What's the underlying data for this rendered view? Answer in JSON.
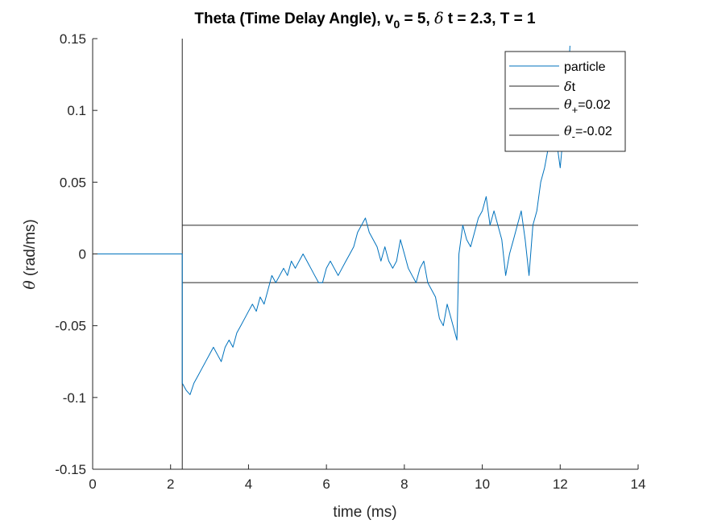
{
  "chart_data": {
    "type": "line",
    "title": {
      "prefix": "Theta (Time Delay Angle), v",
      "sub": "0",
      "middle": " = 5, ",
      "greek": "δ",
      "suffix": " t = 2.3, T = 1"
    },
    "xlabel": "time (ms)",
    "ylabel": {
      "greek": "θ",
      "text": " (rad/ms)"
    },
    "xlim": [
      0,
      14
    ],
    "ylim": [
      -0.15,
      0.15
    ],
    "xticks": [
      0,
      2,
      4,
      6,
      8,
      10,
      12,
      14
    ],
    "xtick_labels": [
      "0",
      "2",
      "4",
      "6",
      "8",
      "10",
      "12",
      "14"
    ],
    "yticks": [
      -0.15,
      -0.1,
      -0.05,
      0,
      0.05,
      0.1,
      0.15
    ],
    "ytick_labels": [
      "-0.15",
      "-0.1",
      "-0.05",
      "0",
      "0.05",
      "0.1",
      "0.15"
    ],
    "legend_position": "top-right",
    "colors": {
      "particle": "#0072BD",
      "reference": "#262626"
    },
    "series": [
      {
        "name": "particle",
        "color": "#0072BD",
        "x": [
          0,
          2.3,
          2.3,
          2.4,
          2.5,
          2.6,
          2.7,
          2.8,
          2.9,
          3.0,
          3.1,
          3.2,
          3.3,
          3.4,
          3.5,
          3.6,
          3.7,
          3.8,
          3.9,
          4.0,
          4.1,
          4.2,
          4.3,
          4.4,
          4.5,
          4.6,
          4.7,
          4.8,
          4.9,
          5.0,
          5.1,
          5.2,
          5.3,
          5.4,
          5.5,
          5.6,
          5.7,
          5.8,
          5.9,
          6.0,
          6.1,
          6.2,
          6.3,
          6.4,
          6.5,
          6.6,
          6.7,
          6.8,
          6.9,
          7.0,
          7.1,
          7.2,
          7.3,
          7.4,
          7.5,
          7.6,
          7.7,
          7.8,
          7.9,
          8.0,
          8.1,
          8.2,
          8.3,
          8.4,
          8.5,
          8.6,
          8.7,
          8.8,
          8.9,
          9.0,
          9.1,
          9.2,
          9.3,
          9.35,
          9.4,
          9.5,
          9.6,
          9.7,
          9.8,
          9.9,
          10.0,
          10.1,
          10.2,
          10.3,
          10.4,
          10.5,
          10.6,
          10.7,
          10.8,
          10.9,
          11.0,
          11.1,
          11.2,
          11.3,
          11.4,
          11.5,
          11.6,
          11.7,
          11.8,
          11.9,
          12.0,
          12.1,
          12.2,
          12.25
        ],
        "y": [
          0,
          0,
          -0.09,
          -0.095,
          -0.098,
          -0.09,
          -0.085,
          -0.08,
          -0.075,
          -0.07,
          -0.065,
          -0.07,
          -0.075,
          -0.065,
          -0.06,
          -0.065,
          -0.055,
          -0.05,
          -0.045,
          -0.04,
          -0.035,
          -0.04,
          -0.03,
          -0.035,
          -0.025,
          -0.015,
          -0.02,
          -0.015,
          -0.01,
          -0.015,
          -0.005,
          -0.01,
          -0.005,
          0.0,
          -0.005,
          -0.01,
          -0.015,
          -0.02,
          -0.02,
          -0.01,
          -0.005,
          -0.01,
          -0.015,
          -0.01,
          -0.005,
          0.0,
          0.005,
          0.015,
          0.02,
          0.025,
          0.015,
          0.01,
          0.005,
          -0.005,
          0.005,
          -0.005,
          -0.01,
          -0.005,
          0.01,
          0.0,
          -0.01,
          -0.015,
          -0.02,
          -0.01,
          -0.005,
          -0.02,
          -0.025,
          -0.03,
          -0.045,
          -0.05,
          -0.035,
          -0.045,
          -0.055,
          -0.06,
          0.0,
          0.02,
          0.01,
          0.005,
          0.015,
          0.025,
          0.03,
          0.04,
          0.02,
          0.03,
          0.02,
          0.01,
          -0.015,
          0.0,
          0.01,
          0.02,
          0.03,
          0.01,
          -0.015,
          0.02,
          0.03,
          0.05,
          0.06,
          0.075,
          0.09,
          0.08,
          0.06,
          0.09,
          0.12,
          0.145
        ]
      },
      {
        "name": "δt",
        "type": "vline",
        "x": 2.3,
        "color": "#262626"
      },
      {
        "name": "θ+=0.02",
        "type": "hline",
        "y": 0.02,
        "color": "#262626",
        "xrange": [
          2.3,
          14
        ]
      },
      {
        "name": "θ-=-0.02",
        "type": "hline",
        "y": -0.02,
        "color": "#262626",
        "xrange": [
          2.3,
          14
        ]
      }
    ],
    "legend": [
      {
        "kind": "particle",
        "text": "particle"
      },
      {
        "kind": "dt",
        "greek": "δ",
        "text": "t"
      },
      {
        "kind": "theta-plus",
        "greek": "θ",
        "sub": "+",
        "text": "=0.02"
      },
      {
        "kind": "theta-minus",
        "greek": "θ",
        "sub": "-",
        "text": "=-0.02"
      }
    ]
  }
}
